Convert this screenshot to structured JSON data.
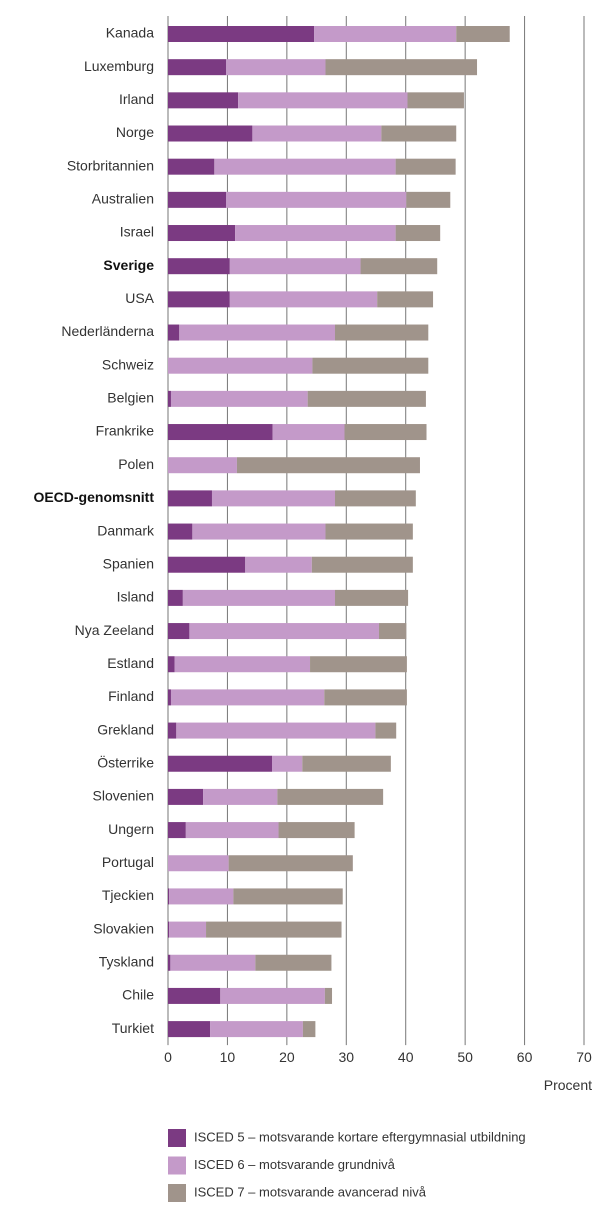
{
  "chart_data": {
    "type": "stacked_barh",
    "categories": [
      "Kanada",
      "Luxemburg",
      "Irland",
      "Norge",
      "Storbritannien",
      "Australien",
      "Israel",
      "Sverige",
      "USA",
      "Nederländerna",
      "Schweiz",
      "Belgien",
      "Frankrike",
      "Polen",
      "OECD-genomsnitt",
      "Danmark",
      "Spanien",
      "Island",
      "Nya Zeeland",
      "Estland",
      "Finland",
      "Grekland",
      "Österrike",
      "Slovenien",
      "Ungern",
      "Portugal",
      "Tjeckien",
      "Slovakien",
      "Tyskland",
      "Chile",
      "Turkiet"
    ],
    "highlight": [
      7,
      14
    ],
    "series": [
      {
        "name": "ISCED 5 – motsvarande kortare eftergymnasial utbildning",
        "color": "#7b3a82",
        "values": [
          24.6,
          9.8,
          11.8,
          14.2,
          7.8,
          9.8,
          11.3,
          10.4,
          10.4,
          1.9,
          0,
          0.5,
          17.6,
          0,
          7.4,
          4.1,
          13,
          2.5,
          3.6,
          1.1,
          0.5,
          1.4,
          17.5,
          5.9,
          3,
          0,
          0.2,
          0.2,
          0.4,
          8.8,
          7.1
        ]
      },
      {
        "name": "ISCED 6 – motsvarande grundnivå",
        "color": "#c49ac9",
        "values": [
          23.9,
          16.7,
          28.5,
          21.7,
          30.5,
          30.3,
          27,
          22,
          24.8,
          26.2,
          24.3,
          23,
          12.1,
          11.6,
          20.7,
          22.4,
          11.2,
          25.6,
          31.9,
          22.8,
          25.8,
          33.5,
          5.1,
          12.5,
          15.6,
          10.2,
          10.8,
          6.2,
          14.3,
          17.6,
          15.6
        ]
      },
      {
        "name": "ISCED 7 – motsvarande avancerad nivå",
        "color": "#a0948b",
        "values": [
          9,
          25.5,
          9.5,
          12.6,
          10.1,
          7.4,
          7.5,
          12.9,
          9.4,
          15.7,
          19.5,
          19.9,
          13.8,
          30.8,
          13.6,
          14.7,
          17,
          12.3,
          4.6,
          16.3,
          13.9,
          3.5,
          14.9,
          17.8,
          12.8,
          20.9,
          18.4,
          22.8,
          12.8,
          1.2,
          2.1
        ]
      }
    ],
    "xlabel": "Procent",
    "xlim": [
      0,
      70
    ],
    "xticks": [
      0,
      10,
      20,
      30,
      40,
      50,
      60,
      70
    ],
    "grid": true
  }
}
